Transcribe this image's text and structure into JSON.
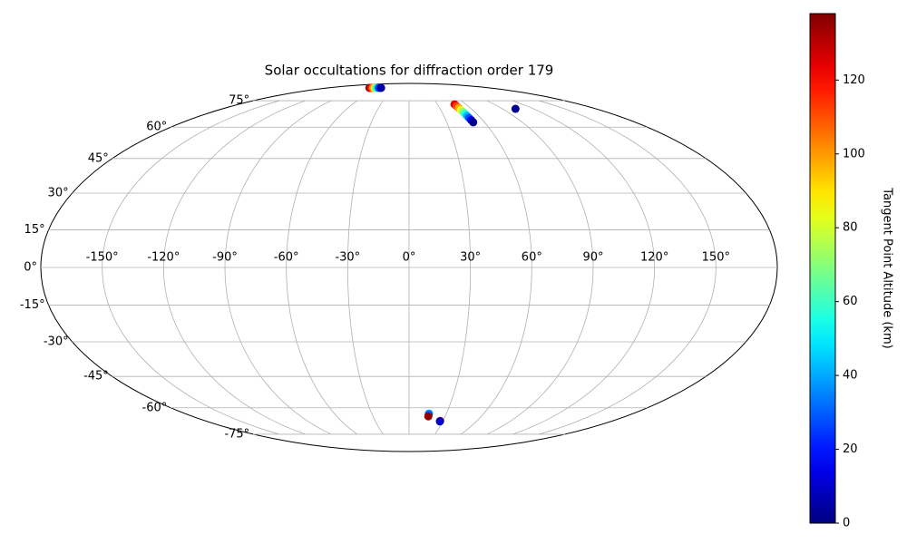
{
  "chart_data": {
    "type": "scatter",
    "projection": "mollweide",
    "title": "Solar occultations for diffraction order 179",
    "x": [
      -88,
      -84,
      -80,
      -76,
      -72,
      -67,
      -62,
      48,
      48.3,
      48.7,
      49,
      49.3,
      49.7,
      50,
      50.3,
      50.7,
      51,
      102.6,
      16,
      16,
      16,
      27.5,
      27.5
    ],
    "y": [
      84.5,
      84.5,
      84.5,
      84.5,
      84.5,
      84.5,
      84.5,
      72.7,
      71.6,
      70.4,
      69.3,
      68.2,
      67.1,
      66,
      64.9,
      63.7,
      62.5,
      70,
      -63,
      -63.5,
      -64.5,
      -67,
      -67.3
    ],
    "values": [
      135,
      120,
      100,
      80,
      55,
      25,
      5,
      125,
      112,
      98,
      84,
      70,
      56,
      42,
      28,
      14,
      2,
      3,
      40,
      30,
      135,
      130,
      10
    ],
    "colormap": "jet",
    "xticks": [
      {
        "value": -150,
        "label": "-150°"
      },
      {
        "value": -120,
        "label": "-120°"
      },
      {
        "value": -90,
        "label": "-90°"
      },
      {
        "value": -60,
        "label": "-60°"
      },
      {
        "value": -30,
        "label": "-30°"
      },
      {
        "value": 0,
        "label": "0°"
      },
      {
        "value": 30,
        "label": "30°"
      },
      {
        "value": 60,
        "label": "60°"
      },
      {
        "value": 90,
        "label": "90°"
      },
      {
        "value": 120,
        "label": "120°"
      },
      {
        "value": 150,
        "label": "150°"
      }
    ],
    "yticks": [
      {
        "value": -75,
        "label": "-75°"
      },
      {
        "value": -60,
        "label": "-60°"
      },
      {
        "value": -45,
        "label": "-45°"
      },
      {
        "value": -30,
        "label": "-30°"
      },
      {
        "value": -15,
        "label": "-15°"
      },
      {
        "value": 0,
        "label": "0°"
      },
      {
        "value": 15,
        "label": "15°"
      },
      {
        "value": 30,
        "label": "30°"
      },
      {
        "value": 45,
        "label": "45°"
      },
      {
        "value": 60,
        "label": "60°"
      },
      {
        "value": 75,
        "label": "75°"
      }
    ],
    "grid": true,
    "colorbar_label": "Tangent Point Altitude (km)",
    "clim": [
      0,
      138
    ],
    "cticks": [
      0,
      20,
      40,
      60,
      80,
      100,
      120
    ]
  }
}
